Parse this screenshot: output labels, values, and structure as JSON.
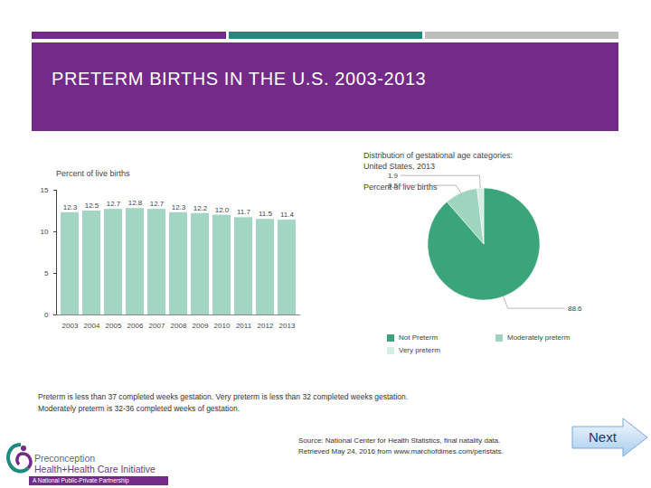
{
  "slide": {
    "title": "PRETERM BIRTHS IN THE U.S. 2003-2013",
    "footnote": [
      "Preterm is less than 37 completed weeks gestation. Very preterm is less than 32 completed weeks gestation.",
      "Moderately preterm is 32-36 completed weeks of gestation."
    ],
    "source": [
      "Source: National Center for Health Statistics, final natality data.",
      "Retrieved May 24, 2016 from www.marchofdimes.com/peristats."
    ],
    "logo": [
      "Preconception",
      "Health+Health Care Initiative",
      "A National Public-Private Partnership"
    ],
    "button": "Next"
  },
  "chart_data": [
    {
      "type": "bar",
      "ylabel": "Percent of live births",
      "categories": [
        "2003",
        "2004",
        "2005",
        "2006",
        "2007",
        "2008",
        "2009",
        "2010",
        "2011",
        "2012",
        "2013"
      ],
      "values": [
        12.3,
        12.5,
        12.7,
        12.8,
        12.7,
        12.3,
        12.2,
        12.0,
        11.7,
        11.5,
        11.4
      ],
      "value_labels": [
        "12.3",
        "12.5",
        "12.7",
        "12.8",
        "12.7",
        "12.3",
        "12.2",
        "12.0",
        "11.7",
        "11.5",
        "11.4"
      ],
      "data_labels": true,
      "color": "#a3d5c3",
      "ylim": [
        0,
        15
      ],
      "yticks": [
        0,
        5,
        10,
        15
      ],
      "grid": false
    },
    {
      "type": "pie",
      "title": "Distribution of gestational age categories: United States, 2013",
      "subtitle": "Percent of live births",
      "categories": [
        "Not Preterm",
        "Moderately preterm",
        "Very preterm"
      ],
      "values": [
        88.6,
        9.5,
        1.9
      ],
      "colors": [
        "#3aa57a",
        "#9fd4be",
        "#d6ede4"
      ],
      "data_labels": true,
      "legend": "bottom"
    }
  ]
}
